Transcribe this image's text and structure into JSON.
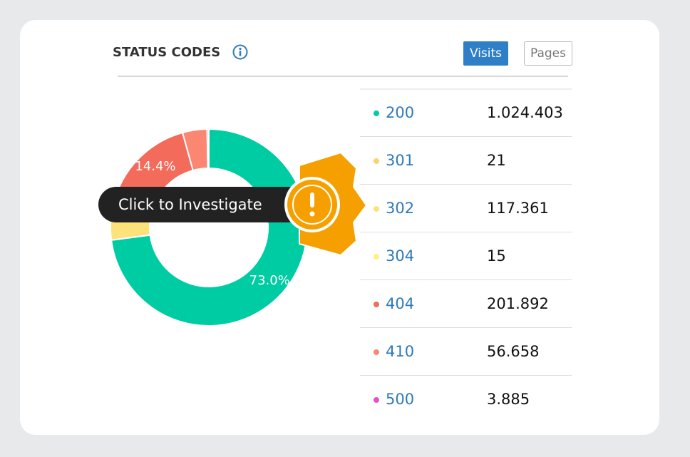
{
  "header": {
    "title": "STATUS CODES",
    "buttons": [
      "Visits",
      "Pages"
    ]
  },
  "tooltip": {
    "text": "Click to Investigate"
  },
  "chart_data": {
    "type": "pie",
    "donut": true,
    "categories": [
      "200",
      "301",
      "302",
      "304",
      "404",
      "410",
      "500"
    ],
    "values": [
      1024403,
      21,
      117361,
      15,
      201892,
      56658,
      3885
    ],
    "value_labels": [
      "1.024.403",
      "21",
      "117.361",
      "15",
      "201.892",
      "56.658",
      "3.885"
    ],
    "colors": [
      "#00cca3",
      "#f7d46e",
      "#fde27a",
      "#fff27a",
      "#f26b5b",
      "#fb8672",
      "#e54fd6"
    ],
    "slice_labels": [
      "73.0%",
      null,
      null,
      null,
      "14.4%",
      null,
      null
    ]
  }
}
